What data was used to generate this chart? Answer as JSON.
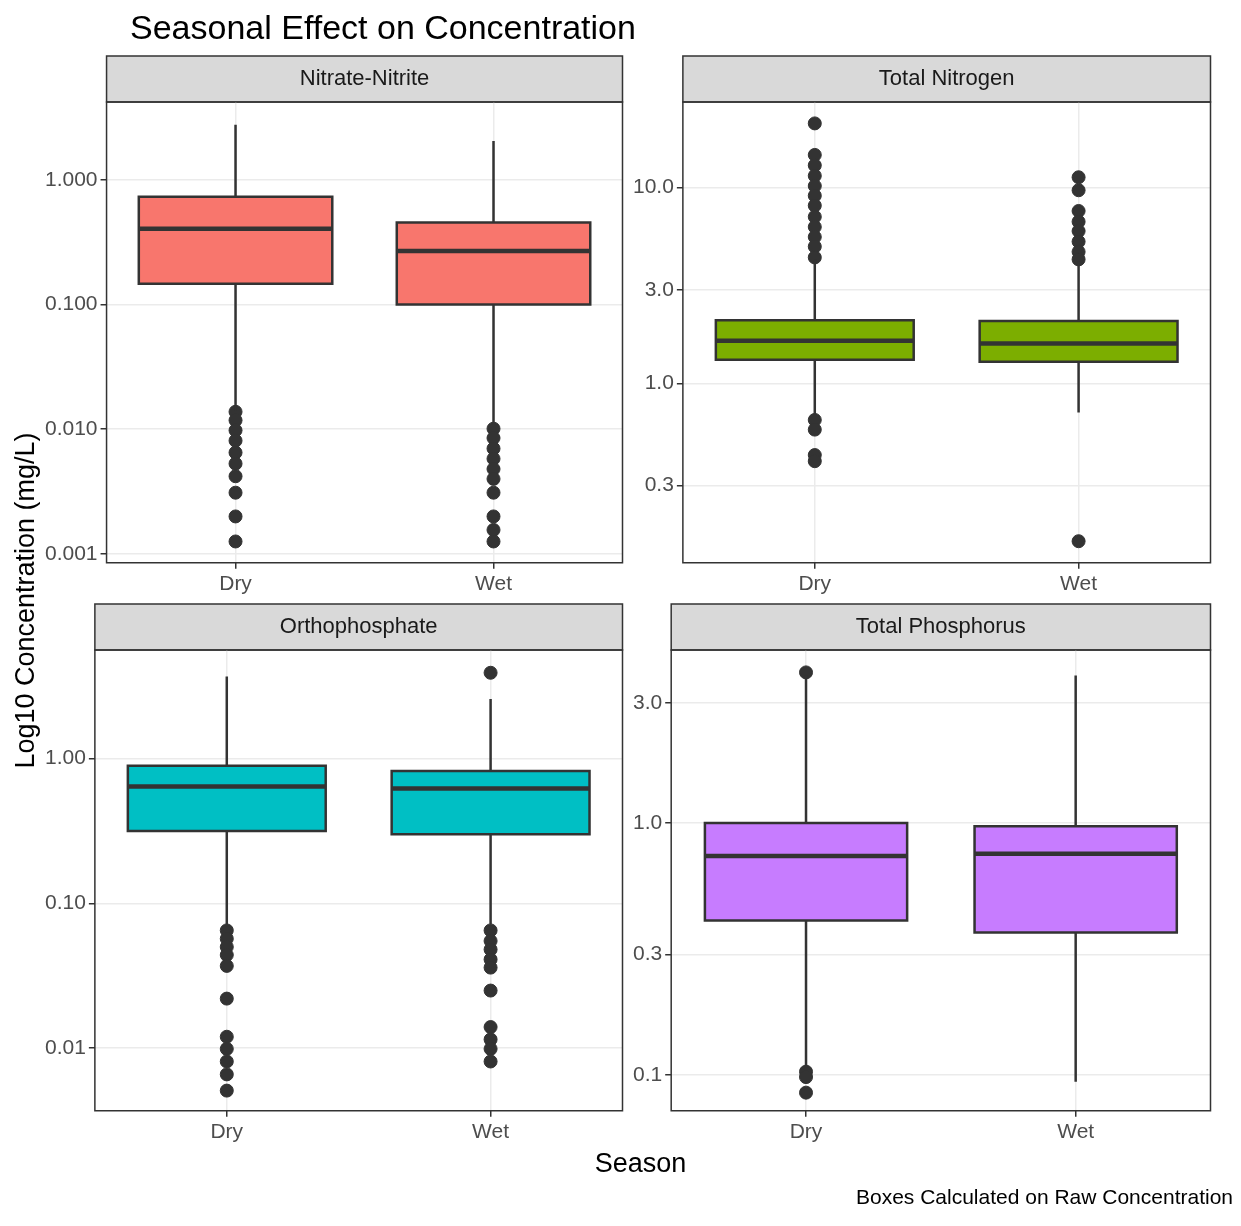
{
  "chart_data": [
    {
      "type": "other",
      "title": "Seasonal Effect on Concentration",
      "xlabel": "Season",
      "ylabel": "Log10 Concentration (mg/L)",
      "annotations": [
        "Boxes Calculated on Raw Concentration"
      ]
    },
    {
      "type": "box",
      "title": "Nitrate-Nitrite",
      "categories": [
        "Dry",
        "Wet"
      ],
      "color": "#f8766d",
      "log": "y",
      "grid": true,
      "ylim": [
        0.00085,
        4.2
      ],
      "yticks": [
        {
          "value": 0.001,
          "label": "0.001"
        },
        {
          "value": 0.01,
          "label": "0.010"
        },
        {
          "value": 0.1,
          "label": "0.100"
        },
        {
          "value": 1,
          "label": "1.000"
        }
      ],
      "boxes": [
        {
          "low": 0.014,
          "q1": 0.147,
          "median": 0.405,
          "q3": 0.73,
          "high": 2.76,
          "outliers": [
            0.0138,
            0.0118,
            0.0098,
            0.0081,
            0.0065,
            0.0053,
            0.0042,
            0.0031,
            0.002,
            0.00126
          ]
        },
        {
          "low": 0.0108,
          "q1": 0.1,
          "median": 0.268,
          "q3": 0.454,
          "high": 2.04,
          "outliers": [
            0.0101,
            0.0085,
            0.007,
            0.0058,
            0.0048,
            0.004,
            0.0031,
            0.002,
            0.00156,
            0.00126
          ]
        }
      ]
    },
    {
      "type": "box",
      "title": "Total Nitrogen",
      "categories": [
        "Dry",
        "Wet"
      ],
      "color": "#7cae00",
      "log": "y",
      "grid": true,
      "ylim": [
        0.121,
        27.4
      ],
      "yticks": [
        {
          "value": 0.3,
          "label": "0.3"
        },
        {
          "value": 1,
          "label": "1.0"
        },
        {
          "value": 3,
          "label": "3.0"
        },
        {
          "value": 10,
          "label": "10.0"
        }
      ],
      "boxes": [
        {
          "low": 0.69,
          "q1": 1.32,
          "median": 1.65,
          "q3": 2.1,
          "high": 4.3,
          "outliers": [
            21.3,
            14.7,
            13,
            11.5,
            10.2,
            9.1,
            8.1,
            7.1,
            6.3,
            5.6,
            5,
            4.4,
            0.65,
            0.58,
            0.43,
            0.4
          ]
        },
        {
          "low": 0.71,
          "q1": 1.29,
          "median": 1.6,
          "q3": 2.08,
          "high": 4.2,
          "outliers": [
            11.3,
            9.7,
            7.6,
            6.7,
            6,
            5.3,
            4.7,
            4.3,
            0.156
          ]
        }
      ]
    },
    {
      "type": "box",
      "title": "Orthophosphate",
      "categories": [
        "Dry",
        "Wet"
      ],
      "color": "#00bfc4",
      "log": "y",
      "grid": true,
      "ylim": [
        0.0037,
        5.6
      ],
      "yticks": [
        {
          "value": 0.01,
          "label": "0.01"
        },
        {
          "value": 0.1,
          "label": "0.10"
        },
        {
          "value": 1,
          "label": "1.00"
        }
      ],
      "boxes": [
        {
          "low": 0.069,
          "q1": 0.315,
          "median": 0.64,
          "q3": 0.89,
          "high": 3.67,
          "outliers": [
            0.065,
            0.057,
            0.05,
            0.044,
            0.037,
            0.022,
            0.012,
            0.0099,
            0.0081,
            0.0066,
            0.0051
          ]
        },
        {
          "low": 0.072,
          "q1": 0.3,
          "median": 0.62,
          "q3": 0.82,
          "high": 2.57,
          "outliers": [
            3.9,
            0.065,
            0.055,
            0.048,
            0.041,
            0.036,
            0.025,
            0.014,
            0.0115,
            0.0099,
            0.0081
          ]
        }
      ]
    },
    {
      "type": "box",
      "title": "Total Phosphorus",
      "categories": [
        "Dry",
        "Wet"
      ],
      "color": "#c77cff",
      "log": "y",
      "grid": true,
      "ylim": [
        0.072,
        4.86
      ],
      "yticks": [
        {
          "value": 0.1,
          "label": "0.1"
        },
        {
          "value": 0.3,
          "label": "0.3"
        },
        {
          "value": 1,
          "label": "1.0"
        },
        {
          "value": 3,
          "label": "3.0"
        }
      ],
      "boxes": [
        {
          "low": 0.107,
          "q1": 0.41,
          "median": 0.74,
          "q3": 1,
          "high": 3.85,
          "outliers": [
            3.96,
            0.103,
            0.098,
            0.085
          ]
        },
        {
          "low": 0.094,
          "q1": 0.367,
          "median": 0.755,
          "q3": 0.97,
          "high": 3.85
        }
      ]
    }
  ]
}
